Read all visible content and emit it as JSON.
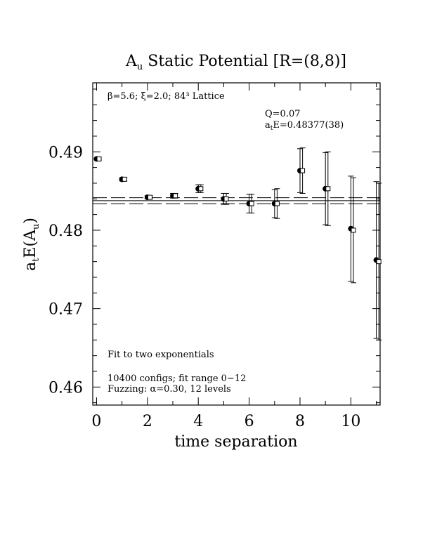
{
  "chart_data": {
    "type": "scatter",
    "title_main": "A",
    "title_sub": "u",
    "title_rest": " Static Potential [R=(8,8)]",
    "xlabel": "time separation",
    "ylabel_pre": "a",
    "ylabel_sub1": "t",
    "ylabel_mid": "E(A",
    "ylabel_sub2": "u",
    "ylabel_post": ")",
    "xlim": [
      -0.15,
      11.15
    ],
    "ylim": [
      0.4577,
      0.4988
    ],
    "xticks": [
      0,
      2,
      4,
      6,
      8,
      10
    ],
    "xtick_labels": [
      "0",
      "2",
      "4",
      "6",
      "8",
      "10"
    ],
    "yticks": [
      0.46,
      0.47,
      0.48,
      0.49
    ],
    "ytick_labels": [
      "0.46",
      "0.47",
      "0.48",
      "0.49"
    ],
    "series": [
      {
        "marker": "filled-circle",
        "x": [
          0,
          1,
          2,
          3,
          4,
          5,
          6,
          7,
          8,
          9,
          10,
          11
        ],
        "y": [
          0.4891,
          0.4865,
          0.4842,
          0.4844,
          0.4853,
          0.484,
          0.4834,
          0.4834,
          0.4876,
          0.4853,
          0.4802,
          0.4762
        ],
        "err": [
          0.0001,
          0.0002,
          0.0002,
          0.0003,
          0.0005,
          0.0007,
          0.0012,
          0.0018,
          0.0028,
          0.0046,
          0.0067,
          0.01
        ]
      },
      {
        "marker": "open-square",
        "x": [
          0.1,
          1.1,
          2.1,
          3.1,
          4.1,
          5.1,
          6.1,
          7.1,
          8.1,
          9.1,
          10.1,
          11.1
        ],
        "y": [
          0.4891,
          0.4865,
          0.4842,
          0.4844,
          0.4853,
          0.484,
          0.4834,
          0.4834,
          0.4876,
          0.4853,
          0.48,
          0.476
        ],
        "err": [
          0.0001,
          0.0002,
          0.0002,
          0.0003,
          0.0005,
          0.0007,
          0.0012,
          0.0019,
          0.0029,
          0.0047,
          0.0067,
          0.01
        ]
      }
    ],
    "fit": {
      "value": 0.48377,
      "err": 0.00038
    },
    "annotations": {
      "lattice": "β=5.6; ξ=2.0; 84³ Lattice",
      "q": "Q=0.07",
      "energy_pre": "a",
      "energy_sub": "t",
      "energy_rest": "E=0.48377(38)",
      "fit_desc": "Fit to two exponentials",
      "configs": "10400 configs; fit range 0−12",
      "fuzzing": "Fuzzing: α=0.30, 12 levels"
    }
  }
}
